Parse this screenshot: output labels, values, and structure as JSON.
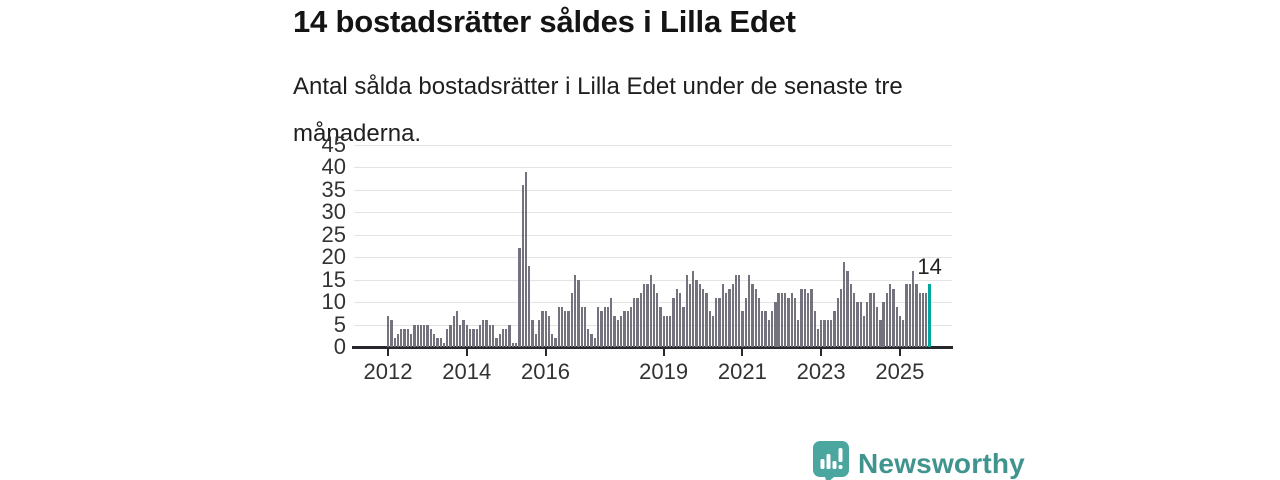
{
  "header": {
    "title": "14 bostadsrätter såldes i Lilla Edet",
    "subtitle": "Antal sålda bostadsrätter i Lilla Edet under de senaste tre månaderna."
  },
  "chart_data": {
    "type": "bar",
    "title": "Antal sålda bostadsrätter i Lilla Edet under de senaste tre månaderna",
    "frequency": "monthly",
    "x_start": "2012-01",
    "x_end": "2025-10",
    "ylim": [
      0,
      45
    ],
    "y_ticks": [
      0,
      5,
      10,
      15,
      20,
      25,
      30,
      35,
      40,
      45
    ],
    "x_ticks": [
      {
        "label": "2012",
        "month_index": 0
      },
      {
        "label": "2014",
        "month_index": 24
      },
      {
        "label": "2016",
        "month_index": 48
      },
      {
        "label": "2019",
        "month_index": 84
      },
      {
        "label": "2021",
        "month_index": 108
      },
      {
        "label": "2023",
        "month_index": 132
      },
      {
        "label": "2025",
        "month_index": 156
      }
    ],
    "grid": "horizontal",
    "legend": "none",
    "values": [
      7,
      6,
      2,
      3,
      4,
      4,
      4,
      3,
      5,
      5,
      5,
      5,
      5,
      4,
      3,
      2,
      2,
      1,
      4,
      5,
      7,
      8,
      5,
      6,
      5,
      4,
      4,
      4,
      5,
      6,
      6,
      5,
      5,
      2,
      3,
      4,
      4,
      5,
      1,
      1,
      22,
      36,
      39,
      18,
      6,
      3,
      6,
      8,
      8,
      7,
      3,
      2,
      9,
      9,
      8,
      8,
      12,
      16,
      15,
      9,
      9,
      4,
      3,
      2,
      9,
      8,
      9,
      9,
      11,
      7,
      6,
      7,
      8,
      8,
      9,
      11,
      11,
      12,
      14,
      14,
      16,
      14,
      12,
      9,
      7,
      7,
      7,
      11,
      13,
      12,
      9,
      16,
      14,
      17,
      15,
      14,
      13,
      12,
      8,
      7,
      11,
      11,
      14,
      12,
      13,
      14,
      16,
      16,
      8,
      11,
      16,
      14,
      13,
      11,
      8,
      8,
      6,
      8,
      10,
      12,
      12,
      12,
      11,
      12,
      11,
      6,
      13,
      13,
      12,
      13,
      8,
      4,
      6,
      6,
      6,
      6,
      8,
      11,
      13,
      19,
      17,
      14,
      12,
      10,
      10,
      7,
      10,
      12,
      12,
      9,
      6,
      10,
      12,
      14,
      13,
      9,
      7,
      6,
      14,
      14,
      17,
      14,
      12,
      12,
      12,
      14
    ],
    "highlight": {
      "index_from_end": 1,
      "value": 14,
      "label": "14"
    },
    "colors": {
      "bar": "#74737d",
      "highlight_bar": "#00a69c",
      "gridline": "#e3e3e3",
      "axis": "#28282c",
      "tick_text": "#333333"
    }
  },
  "footer": {
    "brand": "Newsworthy",
    "brand_color": "#3f948e",
    "icon": "newsworthy-speech-bubble-chart-icon",
    "icon_color": "#4ba6a0"
  }
}
